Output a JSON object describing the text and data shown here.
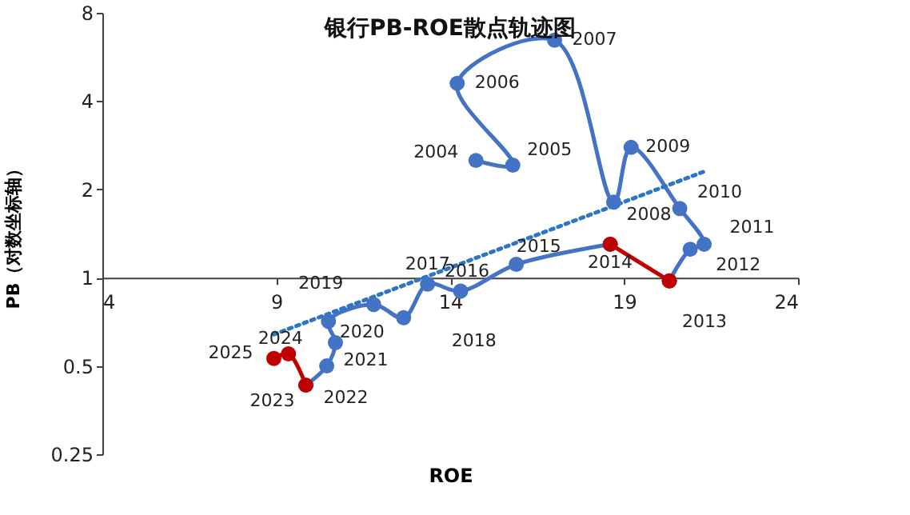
{
  "chart_data": {
    "type": "line",
    "title": "银行PB-ROE散点轨迹图",
    "xlabel": "ROE",
    "ylabel": "PB（对数坐标轴）",
    "xlim": [
      4,
      24
    ],
    "xticks": [
      4,
      9,
      14,
      19,
      24
    ],
    "ylim": [
      0.25,
      8
    ],
    "yticks": [
      0.25,
      0.5,
      1,
      2,
      4,
      8
    ],
    "log": "y",
    "grid": false,
    "marker": "circle",
    "line_style": "solid",
    "series": [
      {
        "color": "#4472c4",
        "x": [
          14.74,
          15.8,
          14.2,
          17.0,
          18.7,
          19.2,
          20.6,
          21.3,
          20.9,
          20.3
        ],
        "values": [
          2.51,
          2.42,
          4.6,
          6.45,
          1.81,
          2.78,
          1.72,
          1.3,
          1.25,
          0.975
        ]
      },
      {
        "color": "#4472c4",
        "x": [
          18.6,
          15.9,
          14.3,
          13.35,
          12.66,
          11.8,
          10.5,
          10.7,
          10.45,
          9.85
        ],
        "values": [
          1.3,
          1.11,
          0.9,
          0.95,
          0.73,
          0.81,
          0.71,
          0.6,
          0.5,
          0.43
        ]
      },
      {
        "color": "#c00000",
        "x": [
          20.3,
          18.6
        ],
        "values": [
          0.975,
          1.3
        ]
      },
      {
        "color": "#c00000",
        "x": [
          9.85,
          9.35,
          8.93
        ],
        "values": [
          0.43,
          0.55,
          0.53
        ]
      },
      {
        "color": "#2e75c6",
        "marker": "none",
        "line_style": "dotted",
        "x": [
          8.93,
          21.3
        ],
        "values": [
          0.64,
          2.3
        ]
      }
    ],
    "annotations": [
      {
        "text": "2004",
        "x": 14.74,
        "y": 2.51
      },
      {
        "text": "2005",
        "x": 15.8,
        "y": 2.42
      },
      {
        "text": "2006",
        "x": 14.2,
        "y": 4.6
      },
      {
        "text": "2007",
        "x": 17.0,
        "y": 6.45
      },
      {
        "text": "2008",
        "x": 18.7,
        "y": 1.81
      },
      {
        "text": "2009",
        "x": 19.2,
        "y": 2.78
      },
      {
        "text": "2010",
        "x": 20.6,
        "y": 1.72
      },
      {
        "text": "2011",
        "x": 21.3,
        "y": 1.3
      },
      {
        "text": "2012",
        "x": 20.9,
        "y": 1.25
      },
      {
        "text": "2013",
        "x": 20.3,
        "y": 0.975
      },
      {
        "text": "2014",
        "x": 18.6,
        "y": 1.3
      },
      {
        "text": "2015",
        "x": 15.9,
        "y": 1.11
      },
      {
        "text": "2016",
        "x": 14.3,
        "y": 0.9
      },
      {
        "text": "2017",
        "x": 13.35,
        "y": 0.95
      },
      {
        "text": "2018",
        "x": 12.66,
        "y": 0.73
      },
      {
        "text": "2019",
        "x": 11.8,
        "y": 0.81
      },
      {
        "text": "2020",
        "x": 10.5,
        "y": 0.71
      },
      {
        "text": "2021",
        "x": 10.7,
        "y": 0.6
      },
      {
        "text": "2022",
        "x": 10.45,
        "y": 0.5
      },
      {
        "text": "2023",
        "x": 9.85,
        "y": 0.43
      },
      {
        "text": "2024",
        "x": 9.35,
        "y": 0.55
      },
      {
        "text": "2025",
        "x": 8.93,
        "y": 0.53
      }
    ]
  }
}
